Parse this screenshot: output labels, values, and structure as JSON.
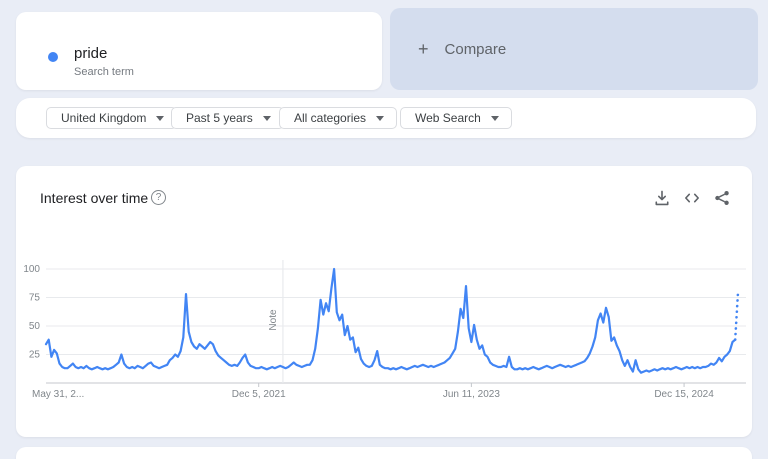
{
  "term_card": {
    "term": "pride",
    "subtitle": "Search term"
  },
  "compare_card": {
    "plus": "+",
    "label": "Compare"
  },
  "filters": [
    {
      "label": "United Kingdom"
    },
    {
      "label": "Past 5 years"
    },
    {
      "label": "All categories"
    },
    {
      "label": "Web Search"
    }
  ],
  "chart_card": {
    "title": "Interest over time",
    "help_glyph": "?",
    "icon_names": [
      "download-icon",
      "embed-icon",
      "share-icon"
    ]
  },
  "colors": {
    "accent_blue": "#4285f4",
    "compare_bg": "#d4ddee",
    "page_bg": "#e9edf6",
    "gridline": "#e8eaed",
    "axis_line": "#c4c7cc",
    "axis_text": "#80868b",
    "icon_gray": "#5f6368"
  },
  "chart_data": {
    "type": "line",
    "title": "Interest over time",
    "xlabel": "",
    "ylabel": "",
    "ylim": [
      0,
      100
    ],
    "y_ticks": [
      25,
      50,
      75,
      100
    ],
    "grid": "horizontal",
    "legend_position": "none",
    "x_tick_labels": [
      "May 31, 2...",
      "Dec 5, 2021",
      "Jun 11, 2023",
      "Dec 15, 2024"
    ],
    "x_tick_week_indices": [
      0,
      79,
      158,
      237
    ],
    "note_label": "Note",
    "note_week_index": 88,
    "dotted_from_index": 256,
    "x_unit": "weeks since 2020-05-31",
    "series": [
      {
        "name": "pride",
        "color": "#4285f4",
        "values": [
          34,
          38,
          23,
          29,
          26,
          17,
          14,
          13,
          13,
          15,
          17,
          14,
          13,
          14,
          13,
          15,
          13,
          12,
          13,
          14,
          13,
          12,
          13,
          12,
          13,
          14,
          16,
          18,
          25,
          17,
          14,
          13,
          14,
          13,
          15,
          14,
          13,
          15,
          17,
          18,
          15,
          14,
          13,
          14,
          15,
          16,
          20,
          22,
          25,
          23,
          28,
          40,
          78,
          45,
          36,
          32,
          30,
          34,
          32,
          30,
          33,
          36,
          34,
          28,
          24,
          22,
          20,
          18,
          16,
          15,
          16,
          15,
          18,
          22,
          25,
          18,
          15,
          14,
          13,
          13,
          14,
          13,
          12,
          13,
          14,
          13,
          14,
          15,
          14,
          13,
          14,
          16,
          18,
          16,
          15,
          14,
          15,
          16,
          16,
          20,
          30,
          48,
          73,
          60,
          70,
          63,
          83,
          100,
          62,
          55,
          60,
          42,
          50,
          38,
          40,
          27,
          31,
          21,
          17,
          15,
          14,
          15,
          20,
          28,
          16,
          14,
          13,
          13,
          12,
          13,
          12,
          13,
          14,
          13,
          12,
          13,
          14,
          15,
          14,
          15,
          16,
          15,
          14,
          15,
          14,
          15,
          16,
          17,
          18,
          20,
          22,
          26,
          30,
          45,
          65,
          57,
          85,
          48,
          36,
          51,
          38,
          30,
          33,
          25,
          23,
          18,
          16,
          15,
          14,
          14,
          15,
          14,
          23,
          14,
          12,
          12,
          13,
          12,
          13,
          12,
          13,
          14,
          13,
          12,
          13,
          14,
          15,
          14,
          13,
          14,
          15,
          16,
          15,
          14,
          15,
          14,
          15,
          16,
          17,
          18,
          19,
          22,
          26,
          32,
          40,
          55,
          61,
          53,
          66,
          58,
          37,
          40,
          33,
          28,
          20,
          15,
          20,
          14,
          10,
          20,
          12,
          9,
          10,
          11,
          10,
          11,
          12,
          11,
          12,
          13,
          12,
          13,
          12,
          13,
          14,
          13,
          12,
          13,
          14,
          13,
          14,
          13,
          14,
          13,
          14,
          14,
          15,
          17,
          16,
          18,
          22,
          19,
          23,
          25,
          28,
          36,
          38,
          78
        ]
      }
    ]
  }
}
